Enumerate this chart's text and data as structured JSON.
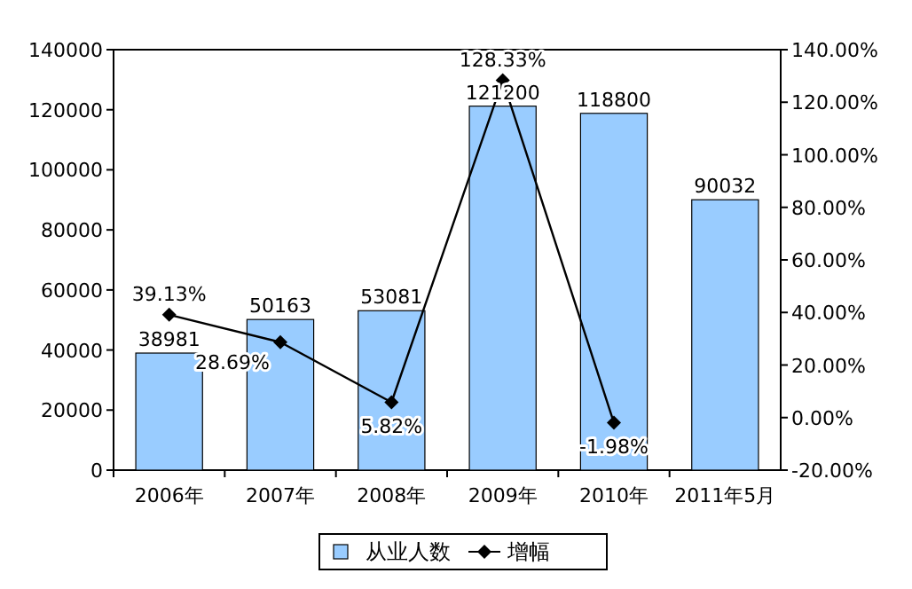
{
  "chart_data": {
    "type": "bar",
    "categories": [
      "2006年",
      "2007年",
      "2008年",
      "2009年",
      "2010年",
      "2011年5月"
    ],
    "series": [
      {
        "name": "从业人数",
        "color": "#99ccff",
        "values": [
          38981,
          50163,
          53081,
          121200,
          118800,
          90032
        ]
      },
      {
        "name": "增幅",
        "type": "line",
        "axis": "y2",
        "color": "#000000",
        "marker": "diamond",
        "values": [
          39.13,
          28.69,
          5.82,
          128.33,
          -1.98,
          null
        ],
        "value_labels": [
          "39.13%",
          "28.69%",
          "5.82%",
          "128.33%",
          "-1.98%",
          null
        ]
      }
    ],
    "data_labels": true,
    "ylim": [
      0,
      140000
    ],
    "yticks": [
      0,
      20000,
      40000,
      60000,
      80000,
      100000,
      120000,
      140000
    ],
    "y2lim": [
      -20,
      140
    ],
    "y2ticks": [
      {
        "value": -20,
        "label": "-20.00%"
      },
      {
        "value": 0,
        "label": "0.00%"
      },
      {
        "value": 20,
        "label": "20.00%"
      },
      {
        "value": 40,
        "label": "40.00%"
      },
      {
        "value": 60,
        "label": "60.00%"
      },
      {
        "value": 80,
        "label": "80.00%"
      },
      {
        "value": 100,
        "label": "100.00%"
      },
      {
        "value": 120,
        "label": "120.00%"
      },
      {
        "value": 140,
        "label": "140.00%"
      }
    ],
    "grid": false,
    "legend": "bottom"
  }
}
